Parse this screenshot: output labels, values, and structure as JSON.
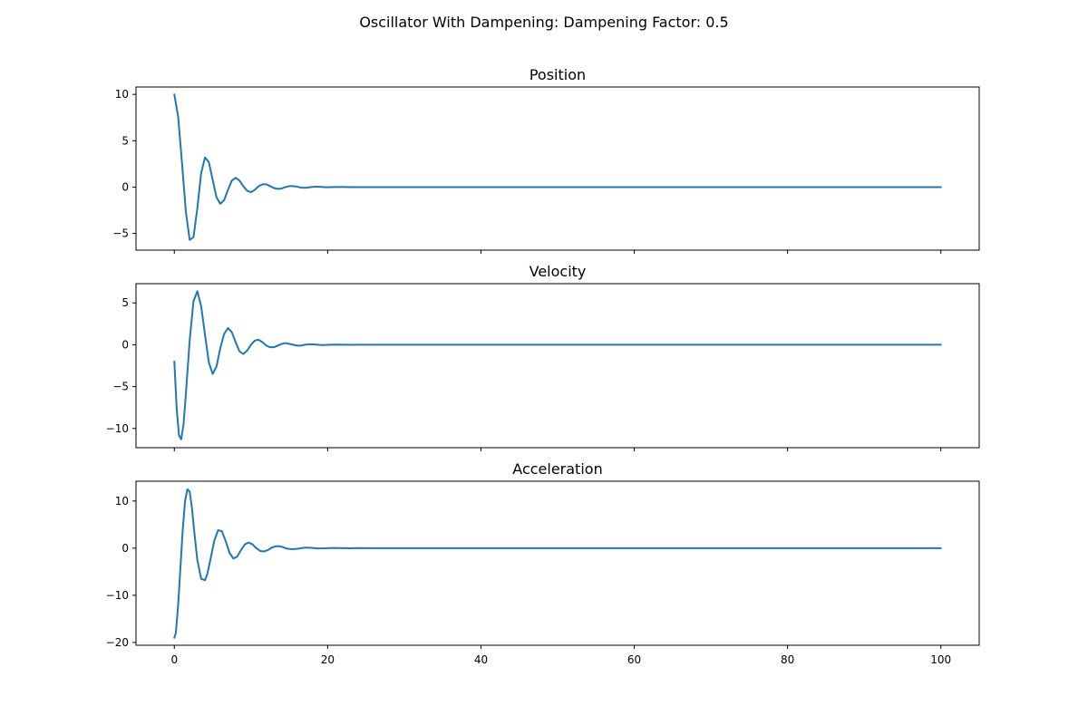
{
  "figure": {
    "suptitle": "Oscillator With Dampening: Dampening Factor: 0.5"
  },
  "chart_data": [
    {
      "type": "line",
      "title": "Position",
      "xlabel": "",
      "ylabel": "",
      "xlim": [
        -5,
        105
      ],
      "ylim": [
        -6.8,
        10.8
      ],
      "xticks": [
        0,
        20,
        40,
        60,
        80,
        100
      ],
      "xtick_labels_visible": false,
      "yticks": [
        -5,
        0,
        5,
        10
      ],
      "ytick_labels": [
        "−5",
        "0",
        "5",
        "10"
      ],
      "grid": false,
      "legend": "none",
      "color": "#1f77b4",
      "x": [
        0,
        0.5,
        1.0,
        1.5,
        2.0,
        2.5,
        3.0,
        3.5,
        4.0,
        4.5,
        5.0,
        5.5,
        6.0,
        6.5,
        7.0,
        7.5,
        8.0,
        8.5,
        9.0,
        9.5,
        10.0,
        10.5,
        11.0,
        11.5,
        12.0,
        12.5,
        13.0,
        13.5,
        14.0,
        14.5,
        15.0,
        15.5,
        16.0,
        16.5,
        17.0,
        17.5,
        18.0,
        18.5,
        19.0,
        19.5,
        20.0,
        21.0,
        22.0,
        23.0,
        24.0,
        25.0,
        26.0,
        27.0,
        28.0,
        29.0,
        30.0,
        35.0,
        40.0,
        50.0,
        60.0,
        70.0,
        80.0,
        90.0,
        100.0
      ],
      "y": [
        10.0,
        7.6,
        2.6,
        -2.6,
        -5.7,
        -5.4,
        -2.3,
        1.5,
        3.2,
        2.7,
        0.8,
        -1.1,
        -1.8,
        -1.4,
        -0.3,
        0.7,
        1.0,
        0.7,
        0.1,
        -0.4,
        -0.55,
        -0.3,
        0.1,
        0.3,
        0.3,
        0.1,
        -0.1,
        -0.2,
        -0.15,
        0.0,
        0.1,
        0.1,
        0.05,
        -0.05,
        -0.08,
        -0.04,
        0.02,
        0.05,
        0.03,
        0.0,
        -0.02,
        0.01,
        0.02,
        0.0,
        -0.01,
        0.0,
        0.0,
        0.0,
        0.0,
        0.0,
        0.0,
        0.0,
        0.0,
        0.0,
        0.0,
        0.0,
        0.0,
        0.0,
        0.0
      ]
    },
    {
      "type": "line",
      "title": "Velocity",
      "xlabel": "",
      "ylabel": "",
      "xlim": [
        -5,
        105
      ],
      "ylim": [
        -12.3,
        7.3
      ],
      "xticks": [
        0,
        20,
        40,
        60,
        80,
        100
      ],
      "xtick_labels_visible": false,
      "yticks": [
        -10,
        -5,
        0,
        5
      ],
      "ytick_labels": [
        "−10",
        "−5",
        "0",
        "5"
      ],
      "grid": false,
      "legend": "none",
      "color": "#1f77b4",
      "x": [
        0,
        0.3,
        0.6,
        0.9,
        1.2,
        1.5,
        2.0,
        2.5,
        3.0,
        3.5,
        4.0,
        4.5,
        5.0,
        5.5,
        6.0,
        6.5,
        7.0,
        7.5,
        8.0,
        8.5,
        9.0,
        9.5,
        10.0,
        10.5,
        11.0,
        11.5,
        12.0,
        12.5,
        13.0,
        13.5,
        14.0,
        14.5,
        15.0,
        15.5,
        16.0,
        16.5,
        17.0,
        17.5,
        18.0,
        18.5,
        19.0,
        19.5,
        20.0,
        21.0,
        22.0,
        23.0,
        24.0,
        25.0,
        26.0,
        27.0,
        28.0,
        30.0,
        35.0,
        40.0,
        50.0,
        60.0,
        70.0,
        80.0,
        90.0,
        100.0
      ],
      "y": [
        -2.0,
        -7.5,
        -10.8,
        -11.3,
        -9.5,
        -6.0,
        0.5,
        5.2,
        6.4,
        4.6,
        1.2,
        -2.1,
        -3.5,
        -2.6,
        -0.4,
        1.3,
        2.0,
        1.5,
        0.3,
        -0.8,
        -1.1,
        -0.7,
        0.0,
        0.5,
        0.6,
        0.3,
        -0.1,
        -0.3,
        -0.3,
        -0.1,
        0.1,
        0.2,
        0.1,
        0.0,
        -0.1,
        -0.1,
        0.0,
        0.05,
        0.05,
        0.02,
        -0.02,
        -0.03,
        -0.01,
        0.02,
        0.01,
        -0.01,
        0.0,
        0.0,
        0.0,
        0.0,
        0.0,
        0.0,
        0.0,
        0.0,
        0.0,
        0.0,
        0.0,
        0.0,
        0.0,
        0.0
      ]
    },
    {
      "type": "line",
      "title": "Acceleration",
      "xlabel": "",
      "ylabel": "",
      "xlim": [
        -5,
        105
      ],
      "ylim": [
        -20.6,
        14.2
      ],
      "xticks": [
        0,
        20,
        40,
        60,
        80,
        100
      ],
      "xtick_labels_visible": true,
      "xtick_labels": [
        "0",
        "20",
        "40",
        "60",
        "80",
        "100"
      ],
      "yticks": [
        -20,
        -10,
        0,
        10
      ],
      "ytick_labels": [
        "−20",
        "−10",
        "0",
        "10"
      ],
      "grid": false,
      "legend": "none",
      "color": "#1f77b4",
      "x": [
        0,
        0.2,
        0.5,
        0.8,
        1.1,
        1.4,
        1.7,
        2.0,
        2.3,
        2.6,
        3.0,
        3.5,
        4.0,
        4.3,
        4.7,
        5.2,
        5.7,
        6.2,
        6.7,
        7.2,
        7.7,
        8.2,
        8.7,
        9.2,
        9.7,
        10.2,
        10.7,
        11.2,
        11.7,
        12.2,
        12.7,
        13.2,
        13.7,
        14.2,
        14.7,
        15.2,
        15.7,
        16.2,
        16.7,
        17.2,
        17.7,
        18.2,
        18.7,
        19.2,
        19.7,
        20.2,
        21.0,
        22.0,
        23.0,
        24.0,
        25.0,
        26.0,
        27.0,
        28.0,
        30.0,
        35.0,
        40.0,
        50.0,
        60.0,
        70.0,
        80.0,
        90.0,
        100.0
      ],
      "y": [
        -19.0,
        -18.0,
        -12.0,
        -4.0,
        4.0,
        10.0,
        12.5,
        12.0,
        8.5,
        3.5,
        -2.5,
        -6.5,
        -6.8,
        -5.5,
        -2.5,
        1.5,
        3.8,
        3.6,
        1.5,
        -1.0,
        -2.2,
        -1.8,
        -0.4,
        0.8,
        1.2,
        0.8,
        0.0,
        -0.6,
        -0.7,
        -0.4,
        0.1,
        0.4,
        0.4,
        0.2,
        -0.1,
        -0.2,
        -0.2,
        -0.1,
        0.05,
        0.12,
        0.1,
        0.02,
        -0.05,
        -0.06,
        -0.03,
        0.02,
        0.04,
        0.0,
        -0.02,
        0.01,
        0.0,
        0.0,
        0.0,
        0.0,
        0.0,
        0.0,
        0.0,
        0.0,
        0.0,
        0.0,
        0.0,
        0.0,
        0.0
      ]
    }
  ]
}
